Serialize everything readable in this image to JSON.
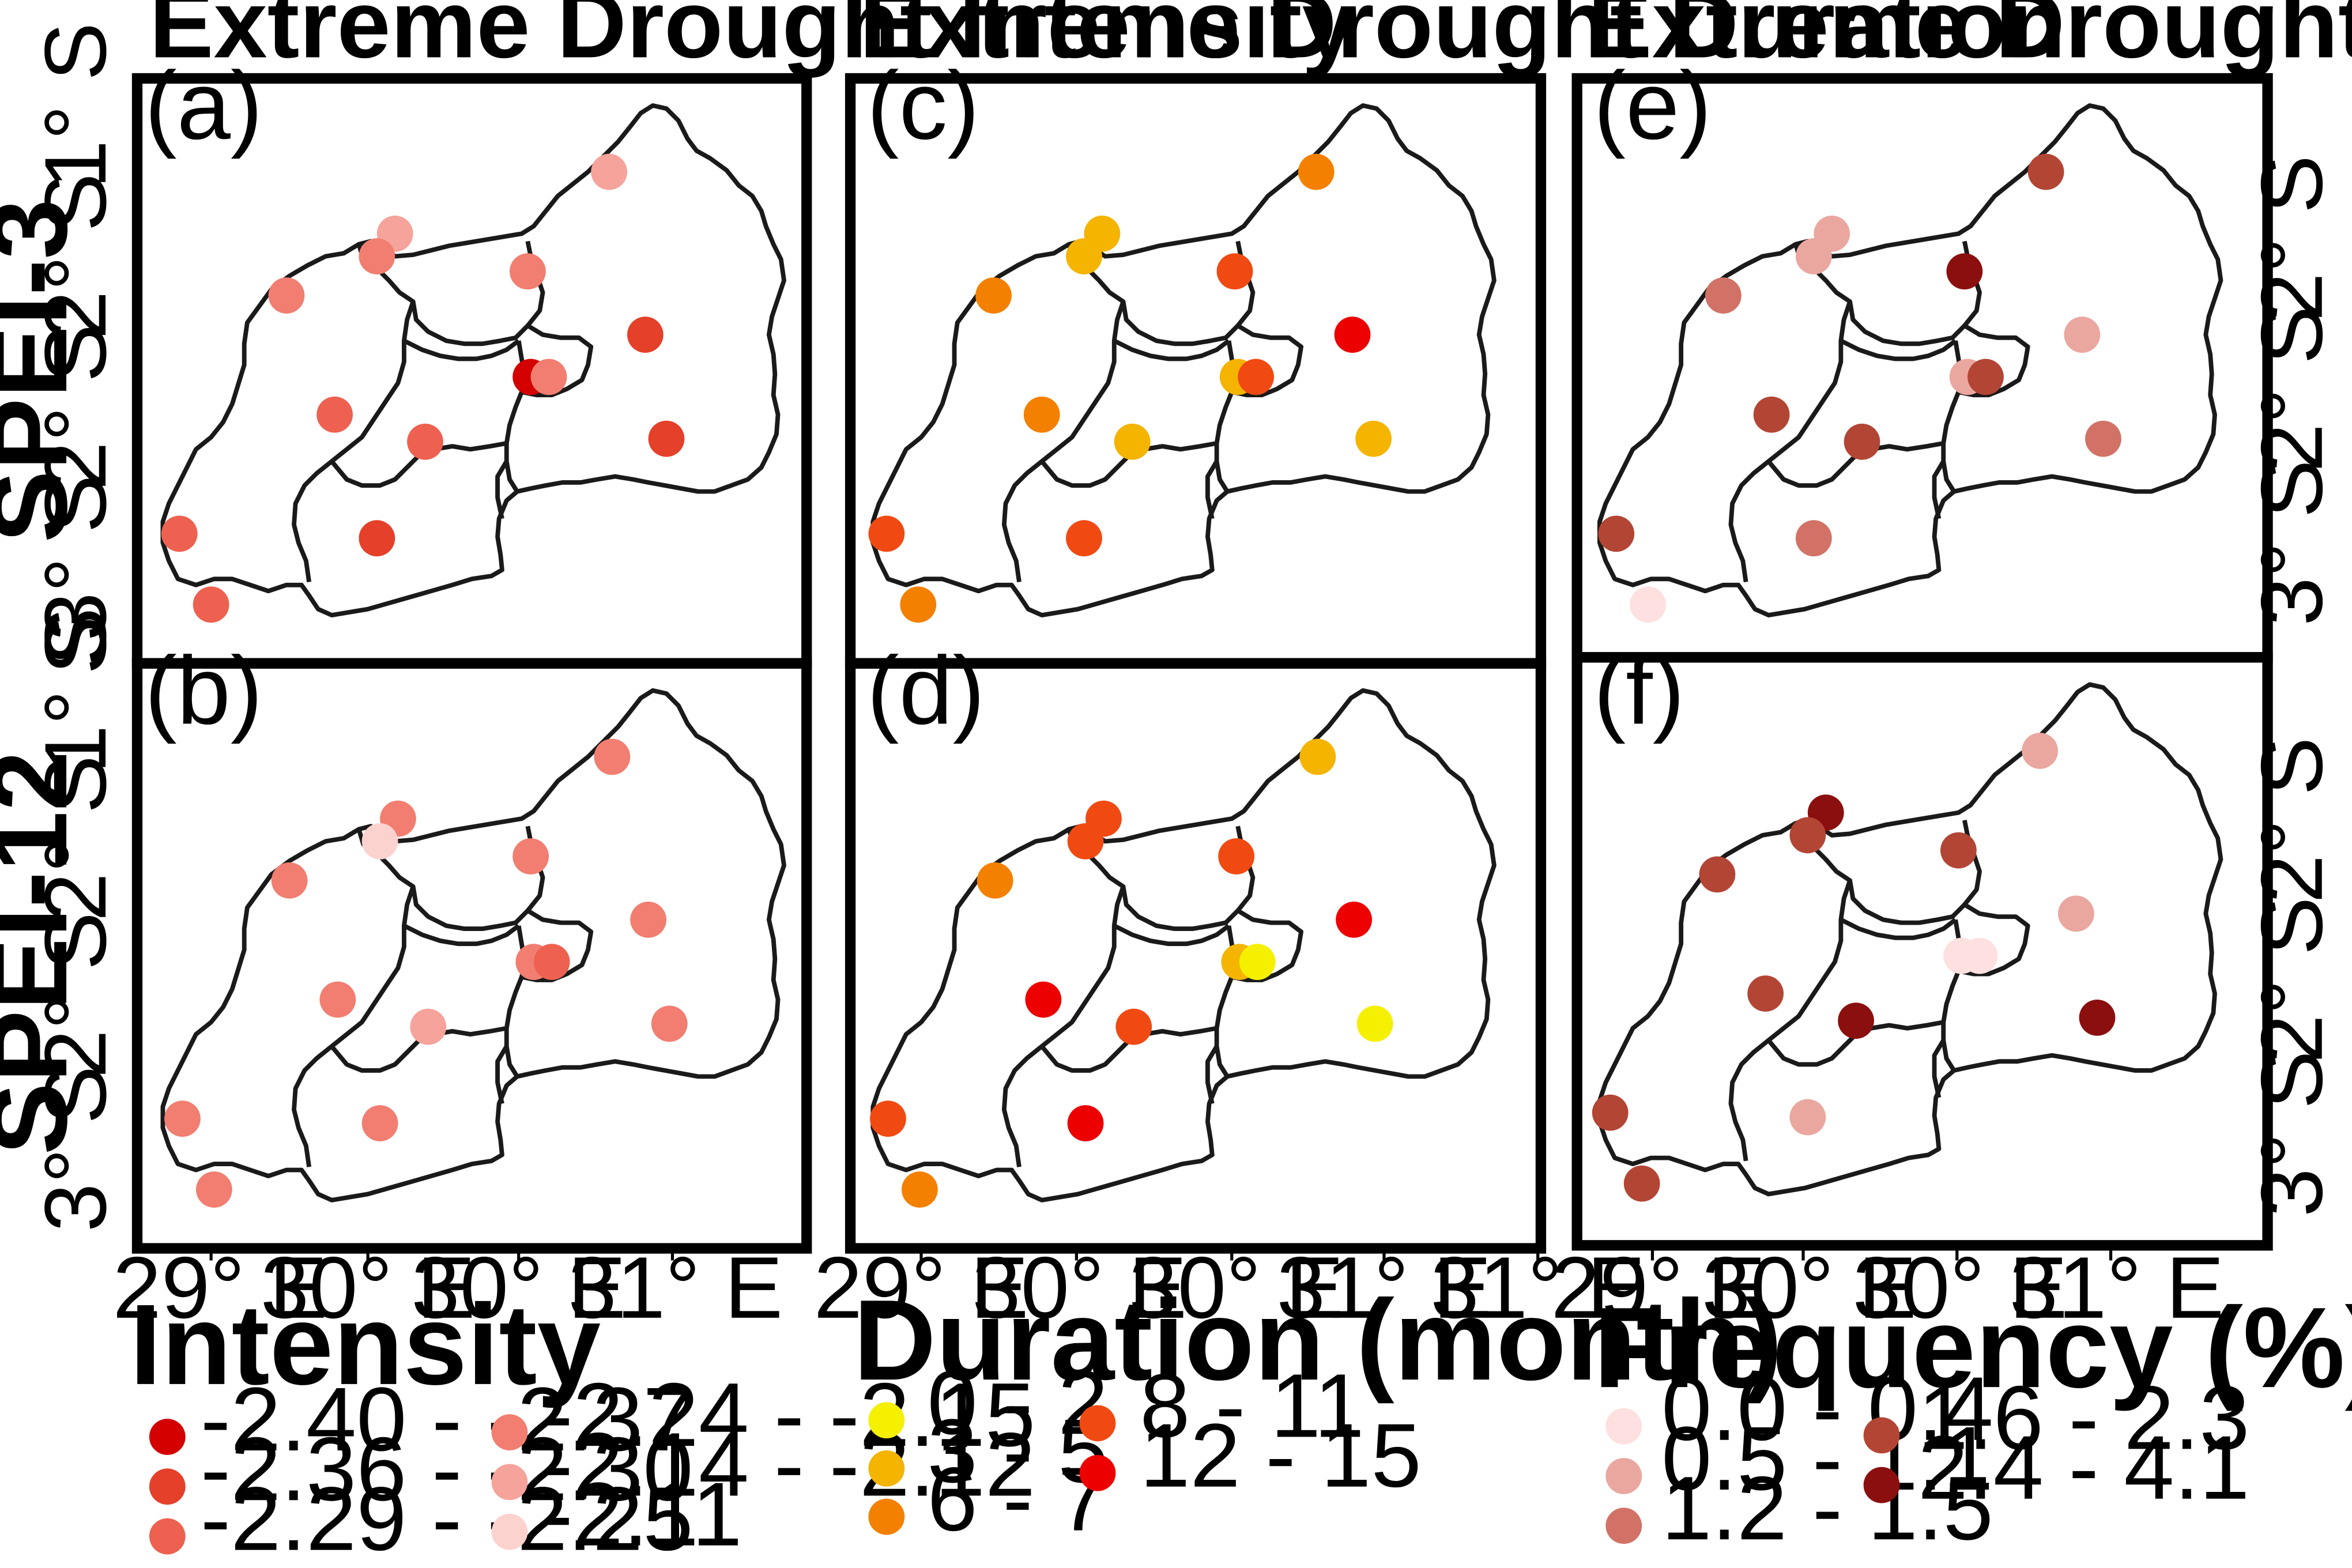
{
  "figure": {
    "columns": [
      {
        "title": "Extreme Drought Intensity",
        "variable": "intensity"
      },
      {
        "title": "Extreme Drought Duration",
        "variable": "duration"
      },
      {
        "title": "Extreme Drought Frequency",
        "variable": "frequency"
      }
    ],
    "row_labels": [
      "SPEI-3",
      "SPEI-12"
    ],
    "panel_labels": [
      "(a)",
      "(b)",
      "(c)",
      "(d)",
      "(e)",
      "(f)"
    ],
    "lon_ticks": [
      "29° E",
      "30° E",
      "30° E",
      "31° E"
    ],
    "lon_ticks_panel_c": [
      "29° E",
      "30° E",
      "30° E",
      "31° E",
      "31° E"
    ],
    "lat_ticks": [
      "1° S",
      "2° S",
      "2° S",
      "3° S",
      "S"
    ],
    "lat_ticks_right": [
      "2° S",
      "2° S",
      "3° S"
    ]
  },
  "legends": {
    "intensity": {
      "title": "Intensity",
      "classes": [
        {
          "label": "-2.40 - -2.37",
          "color": "#d40000"
        },
        {
          "label": "-2.36 - -2.30",
          "color": "#e4402a"
        },
        {
          "label": "-2.29 - -2.25",
          "color": "#ee6150"
        },
        {
          "label": "-2.24 - -2.15",
          "color": "#f17e70"
        },
        {
          "label": "-2.14 - -2.12",
          "color": "#f6a39b"
        },
        {
          "label": "-2.11",
          "color": "#fcd2cf"
        }
      ]
    },
    "duration": {
      "title": "Duration (month)",
      "classes": [
        {
          "label": "0 - 2",
          "color": "#f5f000"
        },
        {
          "label": "3 - 5",
          "color": "#f4b400"
        },
        {
          "label": "6 - 7",
          "color": "#f48000"
        },
        {
          "label": "8 - 11",
          "color": "#f04a12"
        },
        {
          "label": "12 - 15",
          "color": "#ec0000"
        }
      ]
    },
    "frequency": {
      "title": "Frequency (%)",
      "classes": [
        {
          "label": "0.0 - 0.4",
          "color": "#fde0df"
        },
        {
          "label": "0.5 - 1.1",
          "color": "#eaa7a0"
        },
        {
          "label": "1.2 - 1.5",
          "color": "#d27266"
        },
        {
          "label": "1.6 - 2.3",
          "color": "#b34535"
        },
        {
          "label": "2.4 - 4.1",
          "color": "#8b0f0f"
        }
      ]
    }
  },
  "stations": {
    "a": [
      5,
      5,
      4,
      4,
      4,
      2,
      1,
      4,
      3,
      3,
      2,
      3,
      2,
      3,
      1
    ],
    "b": [
      4,
      4,
      6,
      4,
      4,
      4,
      4,
      3,
      4,
      5,
      4,
      4,
      4,
      4,
      5
    ],
    "c": [
      3,
      2,
      2,
      3,
      4,
      5,
      2,
      4,
      3,
      2,
      2,
      4,
      4,
      3,
      2
    ],
    "d": [
      2,
      4,
      4,
      3,
      4,
      5,
      2,
      1,
      5,
      4,
      1,
      4,
      5,
      3,
      1
    ],
    "e": [
      4,
      2,
      2,
      3,
      5,
      2,
      2,
      4,
      4,
      4,
      3,
      4,
      3,
      1,
      1
    ],
    "f": [
      2,
      5,
      4,
      4,
      4,
      2,
      1,
      1,
      4,
      5,
      5,
      4,
      2,
      4,
      1
    ]
  }
}
